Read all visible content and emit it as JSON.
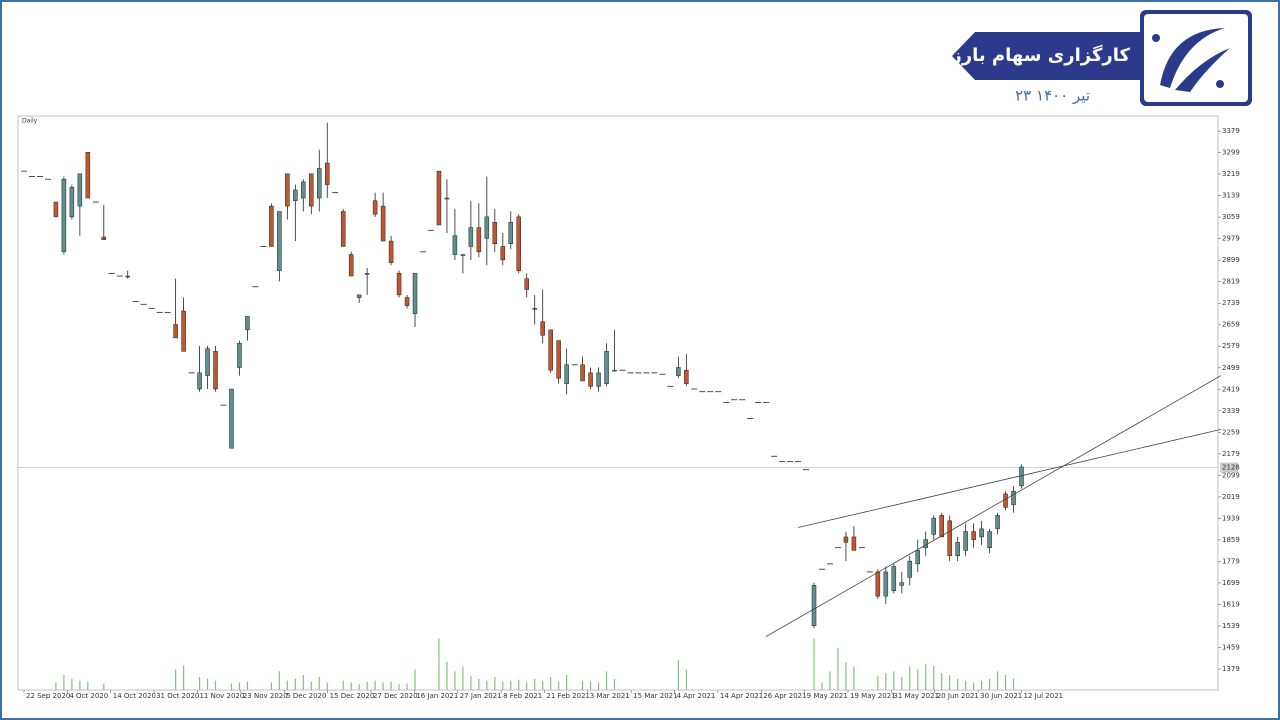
{
  "header": {
    "brand": "کارگزاری سهام بارز",
    "date": "۲۳ تیر ۱۴۰۰"
  },
  "chart_data": {
    "type": "candlestick",
    "title": "Daily",
    "ylim": [
      1301,
      3435
    ],
    "yticks": [
      1379,
      1459,
      1539,
      1619,
      1699,
      1779,
      1859,
      1939,
      2019,
      2099,
      2179,
      2259,
      2339,
      2419,
      2499,
      2579,
      2659,
      2739,
      2819,
      2899,
      2979,
      3059,
      3139,
      3219,
      3299,
      3379
    ],
    "xtick_labels": [
      "22 Sep 2020",
      "4 Oct 2020",
      "14 Oct 2020",
      "31 Oct 2020",
      "11 Nov 2020",
      "23 Nov 2020",
      "5 Dec 2020",
      "15 Dec 2020",
      "27 Dec 2020",
      "16 Jan 2021",
      "27 Jan 2021",
      "8 Feb 2021",
      "21 Feb 2021",
      "3 Mar 2021",
      "15 Mar 2021",
      "4 Apr 2021",
      "14 Apr 2021",
      "26 Apr 2021",
      "9 May 2021",
      "19 May 2021",
      "31 May 2021",
      "20 Jun 2021",
      "30 Jun 2021",
      "12 Jul 2021"
    ],
    "last_price": 2128,
    "up_color": "#5f8f8f",
    "down_color": "#c4562e",
    "volume_color": "#7cc47a",
    "ohlc": [
      [
        3230,
        3230,
        3230,
        3230
      ],
      [
        3210,
        3210,
        3210,
        3210
      ],
      [
        3210,
        3210,
        3210,
        3210
      ],
      [
        3200,
        3200,
        3200,
        3200
      ],
      [
        3115,
        3115,
        3060,
        3060
      ],
      [
        2930,
        3210,
        2920,
        3200
      ],
      [
        3060,
        3180,
        3050,
        3170
      ],
      [
        3100,
        3220,
        2990,
        3220
      ],
      [
        3300,
        3300,
        3130,
        3130
      ],
      [
        3115,
        3115,
        3115,
        3115
      ],
      [
        2985,
        3105,
        2975,
        2975
      ],
      [
        2850,
        2850,
        2850,
        2850
      ],
      [
        2840,
        2840,
        2840,
        2840
      ],
      [
        2840,
        2860,
        2830,
        2840
      ],
      [
        2745,
        2745,
        2745,
        2745
      ],
      [
        2735,
        2735,
        2735,
        2735
      ],
      [
        2720,
        2720,
        2720,
        2720
      ],
      [
        2705,
        2705,
        2705,
        2705
      ],
      [
        2705,
        2705,
        2705,
        2705
      ],
      [
        2660,
        2830,
        2610,
        2610
      ],
      [
        2710,
        2760,
        2560,
        2560
      ],
      [
        2480,
        2480,
        2480,
        2480
      ],
      [
        2420,
        2580,
        2410,
        2480
      ],
      [
        2470,
        2580,
        2420,
        2570
      ],
      [
        2560,
        2580,
        2410,
        2420
      ],
      [
        2360,
        2360,
        2360,
        2360
      ],
      [
        2200,
        2420,
        2200,
        2420
      ],
      [
        2500,
        2600,
        2470,
        2590
      ],
      [
        2640,
        2690,
        2600,
        2690
      ],
      [
        2800,
        2800,
        2800,
        2800
      ],
      [
        2950,
        2950,
        2950,
        2950
      ],
      [
        3100,
        3110,
        2950,
        2950
      ],
      [
        2860,
        3080,
        2820,
        3080
      ],
      [
        3220,
        3220,
        3050,
        3100
      ],
      [
        3120,
        3180,
        2970,
        3160
      ],
      [
        3130,
        3200,
        3080,
        3190
      ],
      [
        3220,
        3220,
        3070,
        3100
      ],
      [
        3130,
        3310,
        3080,
        3240
      ],
      [
        3260,
        3410,
        3130,
        3180
      ],
      [
        3150,
        3150,
        3150,
        3150
      ],
      [
        3080,
        3090,
        2950,
        2950
      ],
      [
        2920,
        2930,
        2840,
        2840
      ],
      [
        2760,
        2770,
        2740,
        2770
      ],
      [
        2850,
        2870,
        2770,
        2850
      ],
      [
        3120,
        3150,
        3060,
        3070
      ],
      [
        3100,
        3150,
        2970,
        2970
      ],
      [
        2970,
        2990,
        2880,
        2890
      ],
      [
        2850,
        2860,
        2760,
        2770
      ],
      [
        2760,
        2770,
        2720,
        2730
      ],
      [
        2700,
        2850,
        2650,
        2850
      ],
      [
        2930,
        2930,
        2930,
        2930
      ],
      [
        3010,
        3010,
        3010,
        3010
      ],
      [
        3230,
        3230,
        3030,
        3030
      ],
      [
        3130,
        3200,
        3000,
        3130
      ],
      [
        2920,
        3090,
        2900,
        2990
      ],
      [
        2920,
        2920,
        2850,
        2920
      ],
      [
        2950,
        3120,
        2900,
        3020
      ],
      [
        3020,
        3110,
        2910,
        2930
      ],
      [
        2980,
        3210,
        2880,
        3060
      ],
      [
        3040,
        3090,
        2930,
        2960
      ],
      [
        2950,
        3000,
        2880,
        2900
      ],
      [
        2960,
        3080,
        2940,
        3040
      ],
      [
        3060,
        3070,
        2850,
        2860
      ],
      [
        2830,
        2850,
        2760,
        2790
      ],
      [
        2720,
        2770,
        2660,
        2720
      ],
      [
        2670,
        2790,
        2590,
        2620
      ],
      [
        2640,
        2640,
        2480,
        2490
      ],
      [
        2600,
        2600,
        2440,
        2460
      ],
      [
        2440,
        2570,
        2400,
        2510
      ],
      [
        2510,
        2510,
        2510,
        2510
      ],
      [
        2510,
        2540,
        2450,
        2450
      ],
      [
        2480,
        2500,
        2420,
        2430
      ],
      [
        2430,
        2500,
        2410,
        2480
      ],
      [
        2440,
        2590,
        2430,
        2560
      ],
      [
        2490,
        2640,
        2490,
        2490
      ],
      [
        2490,
        2490,
        2490,
        2490
      ],
      [
        2480,
        2480,
        2480,
        2480
      ],
      [
        2480,
        2480,
        2480,
        2480
      ],
      [
        2480,
        2480,
        2480,
        2480
      ],
      [
        2480,
        2480,
        2480,
        2480
      ],
      [
        2475,
        2475,
        2475,
        2475
      ],
      [
        2430,
        2430,
        2430,
        2430
      ],
      [
        2470,
        2540,
        2460,
        2500
      ],
      [
        2490,
        2550,
        2430,
        2440
      ],
      [
        2420,
        2420,
        2420,
        2420
      ],
      [
        2410,
        2410,
        2410,
        2410
      ],
      [
        2410,
        2410,
        2410,
        2410
      ],
      [
        2410,
        2410,
        2410,
        2410
      ],
      [
        2370,
        2370,
        2370,
        2370
      ],
      [
        2380,
        2380,
        2380,
        2380
      ],
      [
        2380,
        2380,
        2380,
        2380
      ],
      [
        2310,
        2310,
        2310,
        2310
      ],
      [
        2370,
        2370,
        2370,
        2370
      ],
      [
        2370,
        2370,
        2370,
        2370
      ],
      [
        2170,
        2170,
        2170,
        2170
      ],
      [
        2150,
        2150,
        2150,
        2150
      ],
      [
        2150,
        2150,
        2150,
        2150
      ],
      [
        2150,
        2150,
        2150,
        2150
      ],
      [
        2120,
        2120,
        2120,
        2120
      ],
      [
        1540,
        1700,
        1530,
        1690
      ],
      [
        1750,
        1750,
        1750,
        1750
      ],
      [
        1770,
        1770,
        1770,
        1770
      ],
      [
        1830,
        1830,
        1830,
        1830
      ],
      [
        1870,
        1890,
        1780,
        1850
      ],
      [
        1870,
        1910,
        1830,
        1820
      ],
      [
        1830,
        1830,
        1830,
        1830
      ],
      [
        1740,
        1740,
        1740,
        1740
      ],
      [
        1740,
        1750,
        1640,
        1650
      ],
      [
        1650,
        1760,
        1620,
        1740
      ],
      [
        1670,
        1770,
        1660,
        1760
      ],
      [
        1690,
        1740,
        1660,
        1700
      ],
      [
        1720,
        1800,
        1690,
        1780
      ],
      [
        1770,
        1860,
        1740,
        1820
      ],
      [
        1830,
        1890,
        1800,
        1860
      ],
      [
        1880,
        1950,
        1860,
        1940
      ],
      [
        1950,
        1960,
        1870,
        1870
      ],
      [
        1930,
        1950,
        1780,
        1800
      ],
      [
        1800,
        1870,
        1780,
        1850
      ],
      [
        1820,
        1920,
        1800,
        1890
      ],
      [
        1890,
        1920,
        1830,
        1860
      ],
      [
        1870,
        1930,
        1840,
        1900
      ],
      [
        1830,
        1900,
        1810,
        1890
      ],
      [
        1900,
        1960,
        1880,
        1950
      ],
      [
        2030,
        2040,
        1970,
        1980
      ],
      [
        1990,
        2060,
        1960,
        2040
      ],
      [
        2060,
        2140,
        2050,
        2130
      ]
    ],
    "volume": [
      null,
      null,
      null,
      null,
      8,
      16,
      12,
      10,
      9,
      null,
      7,
      null,
      null,
      null,
      null,
      null,
      null,
      null,
      null,
      22,
      26,
      null,
      14,
      12,
      10,
      null,
      7,
      8,
      9,
      null,
      null,
      8,
      20,
      10,
      12,
      16,
      9,
      14,
      8,
      null,
      10,
      8,
      6,
      9,
      10,
      8,
      9,
      6,
      7,
      22,
      null,
      null,
      55,
      30,
      20,
      25,
      15,
      12,
      10,
      14,
      9,
      10,
      11,
      8,
      12,
      10,
      14,
      9,
      16,
      null,
      10,
      9,
      8,
      20,
      12,
      null,
      null,
      null,
      null,
      null,
      null,
      null,
      32,
      22,
      null,
      null,
      null,
      null,
      null,
      null,
      null,
      null,
      null,
      null,
      null,
      null,
      null,
      null,
      null,
      55,
      8,
      20,
      45,
      30,
      25,
      null,
      null,
      15,
      18,
      20,
      14,
      25,
      22,
      28,
      26,
      18,
      16,
      12,
      10,
      8,
      10,
      12,
      20,
      16,
      12
    ],
    "trendlines": [
      [
        [
          93,
          1500
        ],
        [
          150,
          2470
        ]
      ],
      [
        [
          97,
          1905
        ],
        [
          150,
          2270
        ]
      ]
    ]
  }
}
